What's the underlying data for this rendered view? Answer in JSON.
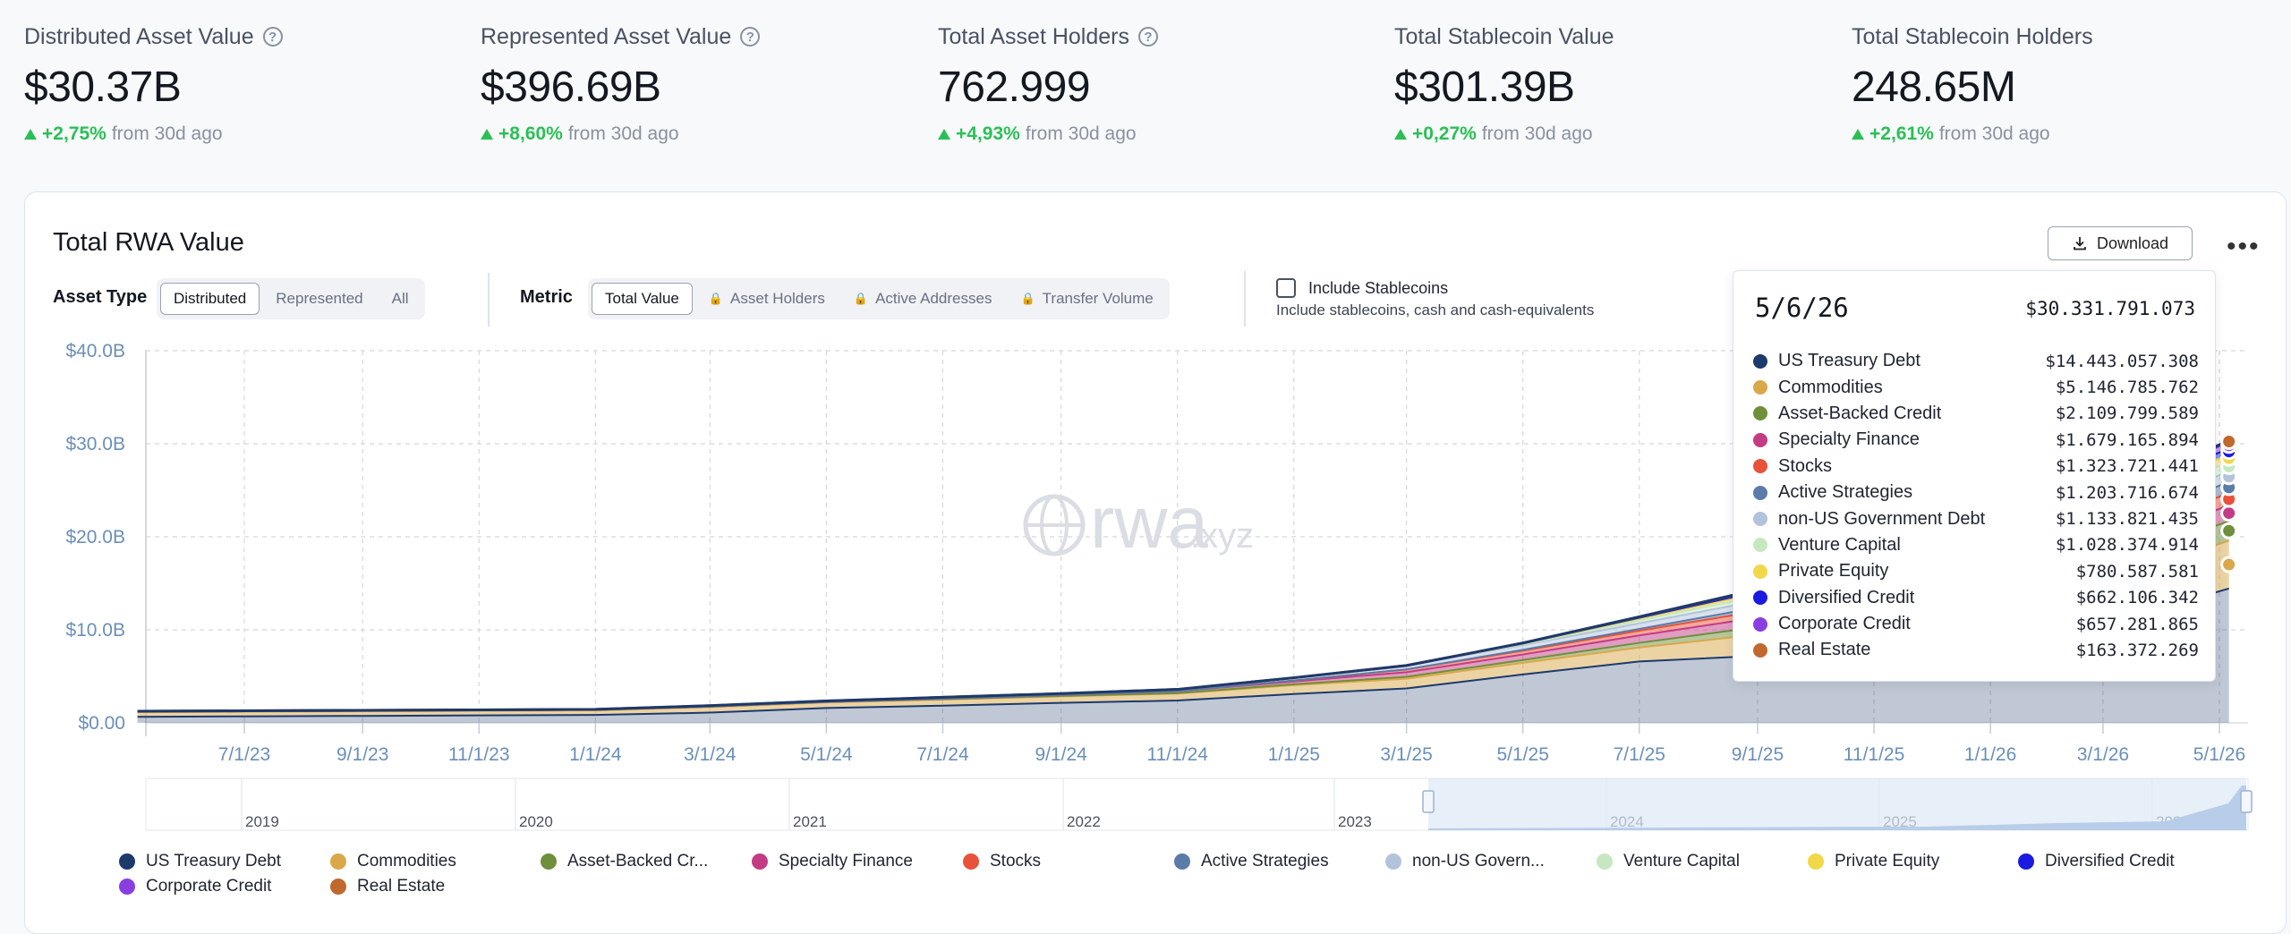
{
  "stats": [
    {
      "label": "Distributed Asset Value",
      "value": "$30.37B",
      "change": "+2,75%",
      "suffix": "from 30d ago",
      "help": true
    },
    {
      "label": "Represented Asset Value",
      "value": "$396.69B",
      "change": "+8,60%",
      "suffix": "from 30d ago",
      "help": true
    },
    {
      "label": "Total Asset Holders",
      "value": "762.999",
      "change": "+4,93%",
      "suffix": "from 30d ago",
      "help": true
    },
    {
      "label": "Total Stablecoin Value",
      "value": "$301.39B",
      "change": "+0,27%",
      "suffix": "from 30d ago",
      "help": false
    },
    {
      "label": "Total Stablecoin Holders",
      "value": "248.65M",
      "change": "+2,61%",
      "suffix": "from 30d ago",
      "help": false
    }
  ],
  "card": {
    "title": "Total RWA Value",
    "download_label": "Download",
    "more_label": "•••",
    "asset_type_label": "Asset Type",
    "asset_types": [
      "Distributed",
      "Represented",
      "All"
    ],
    "asset_type_selected": "Distributed",
    "metric_label": "Metric",
    "metrics": [
      {
        "label": "Total Value",
        "locked": false
      },
      {
        "label": "Asset Holders",
        "locked": true
      },
      {
        "label": "Active Addresses",
        "locked": true
      },
      {
        "label": "Transfer Volume",
        "locked": true
      }
    ],
    "metric_selected": "Total Value",
    "include_stablecoins_label": "Include Stablecoins",
    "include_stablecoins_sub": "Include stablecoins, cash and cash-equivalents",
    "include_stablecoins_checked": false,
    "watermark": "rwa",
    "watermark_suffix": ".xyz"
  },
  "colors": {
    "accent_green": "#2bbf55",
    "US Treasury Debt": "#1c3a6b",
    "Commodities": "#d9a84a",
    "Asset-Backed Credit": "#6f8f3a",
    "Specialty Finance": "#c43c83",
    "Stocks": "#e8523a",
    "Active Strategies": "#5b7ba8",
    "non-US Government Debt": "#b3c3dc",
    "Venture Capital": "#c6e8c0",
    "Private Equity": "#f0d84a",
    "Diversified Credit": "#1a1ae0",
    "Corporate Credit": "#8a3ee0",
    "Real Estate": "#c0692e"
  },
  "chart_data": {
    "type": "area",
    "stacked": true,
    "title": "Total RWA Value",
    "xlabel": "",
    "ylabel": "",
    "ylim": [
      0,
      40
    ],
    "y_unit": "$B",
    "y_ticks": [
      "$0.00",
      "$10.0B",
      "$20.0B",
      "$30.0B",
      "$40.0B"
    ],
    "x_ticks": [
      "7/1/23",
      "9/1/23",
      "11/1/23",
      "1/1/24",
      "3/1/24",
      "5/1/24",
      "7/1/24",
      "9/1/24",
      "11/1/24",
      "1/1/25",
      "3/1/25",
      "5/1/25",
      "7/1/25",
      "9/1/25",
      "11/1/25",
      "1/1/26",
      "3/1/26",
      "5/1/26"
    ],
    "navigator_years": [
      "2019",
      "2020",
      "2021",
      "2022",
      "2023",
      "2024",
      "2025",
      "2026"
    ],
    "grid": true,
    "legend_position": "bottom",
    "x": [
      "2023-05-06",
      "2023-07-01",
      "2023-09-01",
      "2023-11-01",
      "2024-01-01",
      "2024-03-01",
      "2024-05-01",
      "2024-07-01",
      "2024-09-01",
      "2024-11-01",
      "2025-01-01",
      "2025-03-01",
      "2025-05-01",
      "2025-07-01",
      "2025-09-01",
      "2025-11-01",
      "2026-01-01",
      "2026-03-01",
      "2026-05-06"
    ],
    "series": [
      {
        "name": "US Treasury Debt",
        "values": [
          0.65,
          0.7,
          0.75,
          0.8,
          0.85,
          1.1,
          1.6,
          1.85,
          2.15,
          2.4,
          3.1,
          3.7,
          5.2,
          6.6,
          7.2,
          7.6,
          8.0,
          10.5,
          14.44
        ]
      },
      {
        "name": "Commodities",
        "values": [
          0.5,
          0.5,
          0.5,
          0.5,
          0.5,
          0.6,
          0.6,
          0.65,
          0.7,
          0.75,
          0.95,
          1.05,
          1.25,
          1.5,
          2.3,
          3.0,
          3.5,
          4.5,
          5.15
        ]
      },
      {
        "name": "Asset-Backed Credit",
        "values": [
          0.05,
          0.05,
          0.05,
          0.05,
          0.05,
          0.05,
          0.05,
          0.05,
          0.05,
          0.05,
          0.1,
          0.2,
          0.3,
          0.5,
          0.8,
          1.2,
          1.5,
          1.8,
          2.11
        ]
      },
      {
        "name": "Specialty Finance",
        "values": [
          0.0,
          0.0,
          0.0,
          0.0,
          0.0,
          0.0,
          0.0,
          0.05,
          0.1,
          0.2,
          0.3,
          0.5,
          0.6,
          0.8,
          1.0,
          1.2,
          1.3,
          1.5,
          1.68
        ]
      },
      {
        "name": "Stocks",
        "values": [
          0.0,
          0.0,
          0.0,
          0.0,
          0.0,
          0.0,
          0.0,
          0.0,
          0.0,
          0.0,
          0.1,
          0.3,
          0.4,
          0.5,
          0.7,
          0.9,
          1.0,
          1.2,
          1.32
        ]
      },
      {
        "name": "Active Strategies",
        "values": [
          0.0,
          0.0,
          0.0,
          0.0,
          0.0,
          0.0,
          0.0,
          0.0,
          0.0,
          0.0,
          0.0,
          0.0,
          0.1,
          0.2,
          0.4,
          0.7,
          0.9,
          1.1,
          1.2
        ]
      },
      {
        "name": "non-US Government Debt",
        "values": [
          0.05,
          0.05,
          0.05,
          0.05,
          0.05,
          0.1,
          0.1,
          0.15,
          0.15,
          0.2,
          0.3,
          0.4,
          0.5,
          0.6,
          0.7,
          0.8,
          0.9,
          1.0,
          1.13
        ]
      },
      {
        "name": "Venture Capital",
        "values": [
          0.0,
          0.0,
          0.0,
          0.0,
          0.0,
          0.0,
          0.0,
          0.0,
          0.0,
          0.0,
          0.0,
          0.0,
          0.1,
          0.3,
          0.5,
          0.7,
          0.8,
          0.9,
          1.03
        ]
      },
      {
        "name": "Private Equity",
        "values": [
          0.0,
          0.0,
          0.0,
          0.0,
          0.0,
          0.0,
          0.0,
          0.0,
          0.0,
          0.0,
          0.0,
          0.0,
          0.1,
          0.2,
          0.3,
          0.4,
          0.5,
          0.7,
          0.78
        ]
      },
      {
        "name": "Diversified Credit",
        "values": [
          0.0,
          0.0,
          0.0,
          0.0,
          0.0,
          0.0,
          0.0,
          0.0,
          0.0,
          0.0,
          0.0,
          0.0,
          0.0,
          0.1,
          0.2,
          0.3,
          0.4,
          0.55,
          0.66
        ]
      },
      {
        "name": "Corporate Credit",
        "values": [
          0.0,
          0.0,
          0.0,
          0.0,
          0.0,
          0.0,
          0.0,
          0.0,
          0.0,
          0.0,
          0.0,
          0.0,
          0.0,
          0.05,
          0.15,
          0.3,
          0.4,
          0.55,
          0.66
        ]
      },
      {
        "name": "Real Estate",
        "values": [
          0.0,
          0.0,
          0.0,
          0.0,
          0.0,
          0.0,
          0.0,
          0.0,
          0.0,
          0.0,
          0.0,
          0.02,
          0.03,
          0.05,
          0.08,
          0.1,
          0.12,
          0.15,
          0.16
        ]
      }
    ]
  },
  "tooltip": {
    "date": "5/6/26",
    "total": "$30.331.791.073",
    "rows": [
      {
        "name": "US Treasury Debt",
        "value": "$14.443.057.308"
      },
      {
        "name": "Commodities",
        "value": "$5.146.785.762"
      },
      {
        "name": "Asset-Backed Credit",
        "value": "$2.109.799.589"
      },
      {
        "name": "Specialty Finance",
        "value": "$1.679.165.894"
      },
      {
        "name": "Stocks",
        "value": "$1.323.721.441"
      },
      {
        "name": "Active Strategies",
        "value": "$1.203.716.674"
      },
      {
        "name": "non-US Government Debt",
        "value": "$1.133.821.435"
      },
      {
        "name": "Venture Capital",
        "value": "$1.028.374.914"
      },
      {
        "name": "Private Equity",
        "value": "$780.587.581"
      },
      {
        "name": "Diversified Credit",
        "value": "$662.106.342"
      },
      {
        "name": "Corporate Credit",
        "value": "$657.281.865"
      },
      {
        "name": "Real Estate",
        "value": "$163.372.269"
      }
    ]
  },
  "legend": [
    {
      "name": "US Treasury Debt",
      "label": "US Treasury Debt"
    },
    {
      "name": "Commodities",
      "label": "Commodities"
    },
    {
      "name": "Asset-Backed Credit",
      "label": "Asset-Backed Cr..."
    },
    {
      "name": "Specialty Finance",
      "label": "Specialty Finance"
    },
    {
      "name": "Stocks",
      "label": "Stocks"
    },
    {
      "name": "Active Strategies",
      "label": "Active Strategies"
    },
    {
      "name": "non-US Government Debt",
      "label": "non-US Govern..."
    },
    {
      "name": "Venture Capital",
      "label": "Venture Capital"
    },
    {
      "name": "Private Equity",
      "label": "Private Equity"
    },
    {
      "name": "Diversified Credit",
      "label": "Diversified Credit"
    },
    {
      "name": "Corporate Credit",
      "label": "Corporate Credit"
    },
    {
      "name": "Real Estate",
      "label": "Real Estate"
    }
  ]
}
